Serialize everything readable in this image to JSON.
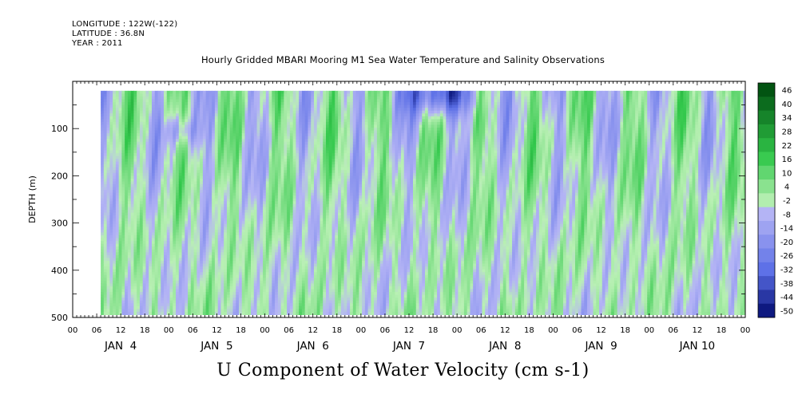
{
  "header": {
    "longitude": "LONGITUDE : 122W(-122)",
    "latitude": "LATITUDE : 36.8N",
    "year": "YEAR : 2011"
  },
  "chart_data": {
    "type": "heatmap",
    "title": "Hourly Gridded MBARI Mooring M1 Sea Water Temperature and Salinity Observations",
    "xlabel": "U Component of Water Velocity (cm s-1)",
    "ylabel": "DEPTH (m)",
    "ylim": [
      500,
      0
    ],
    "y_ticks": [
      100,
      200,
      300,
      400,
      500
    ],
    "y_tick_labels": [
      "100",
      "200",
      "300",
      "400",
      "500"
    ],
    "x_range_hours": [
      0,
      168
    ],
    "x_hour_labels": [
      "00",
      "06",
      "12",
      "18",
      "00",
      "06",
      "12",
      "18",
      "00",
      "06",
      "12",
      "18",
      "00",
      "06",
      "12",
      "18",
      "00",
      "06",
      "12",
      "18",
      "00",
      "06",
      "12",
      "18",
      "00",
      "06",
      "12",
      "18",
      "00"
    ],
    "day_labels": [
      "JAN  4",
      "JAN  5",
      "JAN  6",
      "JAN  7",
      "JAN  8",
      "JAN  9",
      "JAN 10"
    ],
    "data_x_range_hours": [
      7,
      168
    ],
    "data_depth_range": [
      20,
      490
    ],
    "colorbar": {
      "levels": [
        "46",
        "40",
        "34",
        "28",
        "22",
        "16",
        "10",
        "4",
        "-2",
        "-8",
        "-14",
        "-20",
        "-26",
        "-32",
        "-38",
        "-44",
        "-50"
      ],
      "range": [
        -50,
        50
      ]
    },
    "colors": {
      "strong_positive": "#005010",
      "positive": "#32c84b",
      "weak_positive": "#b9f0b4",
      "weak_negative": "#b4b4f5",
      "negative": "#5a6ee6",
      "strong_negative": "#000a6e"
    }
  }
}
